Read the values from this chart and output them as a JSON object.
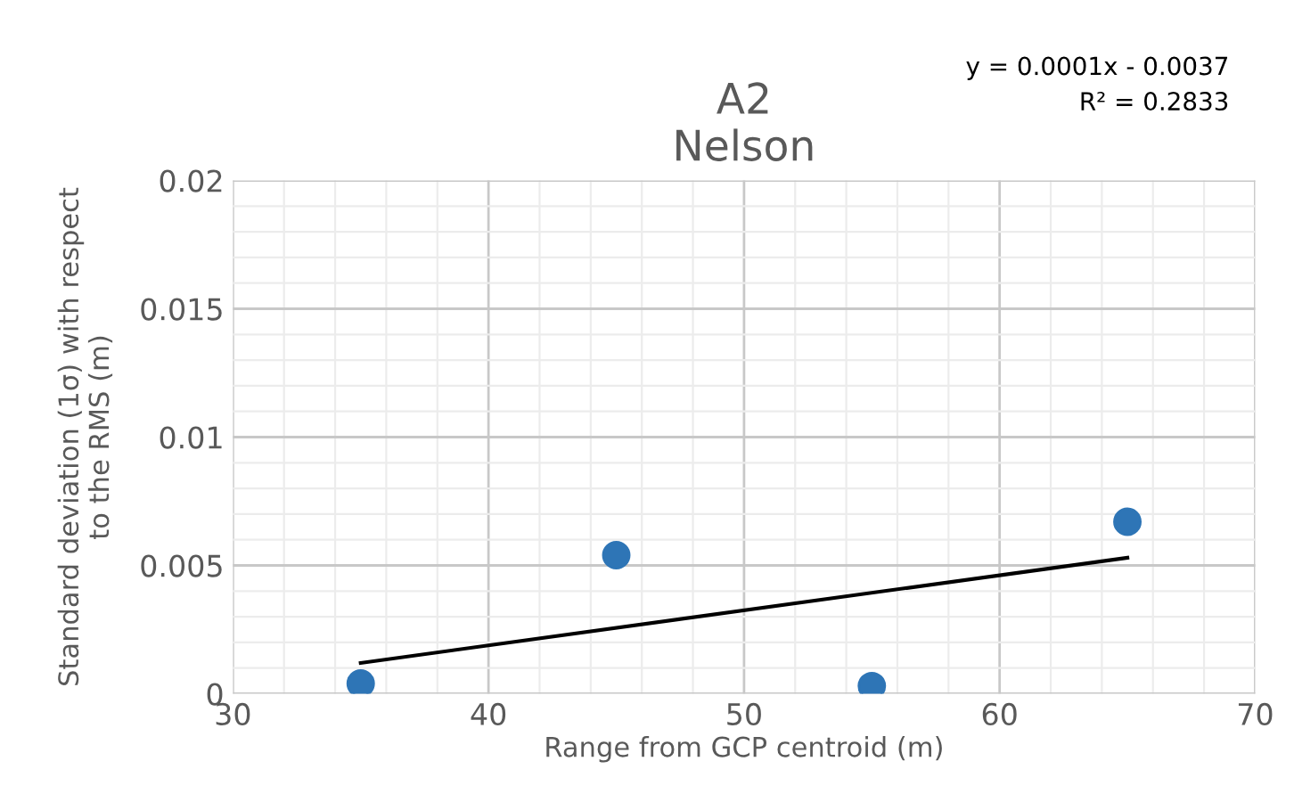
{
  "chart_data": {
    "type": "scatter",
    "title": "A2\nNelson",
    "xlabel": "Range from GCP centroid (m)",
    "ylabel": "Standard deviation (1σ) with respect\nto the RMS (m)",
    "series": [
      {
        "color": "#2e75b6",
        "x": [
          35,
          45,
          55,
          65
        ],
        "values": [
          0.0004,
          0.0054,
          0.0003,
          0.0067
        ],
        "marker": "circle"
      },
      {
        "type": "line",
        "color": "#000000",
        "x": [
          35,
          65
        ],
        "values": [
          0.0012,
          0.0053
        ],
        "marker": "none"
      }
    ],
    "annotations": [
      "y = 0.0001x - 0.0037\nR² = 0.2833"
    ],
    "xlim": [
      30,
      70
    ],
    "xticks": [
      30,
      40,
      50,
      60,
      70
    ],
    "ylim": [
      0,
      0.02
    ],
    "yticks": [
      0,
      0.005,
      0.01,
      0.015,
      0.02
    ],
    "grid": true,
    "legend": false
  }
}
